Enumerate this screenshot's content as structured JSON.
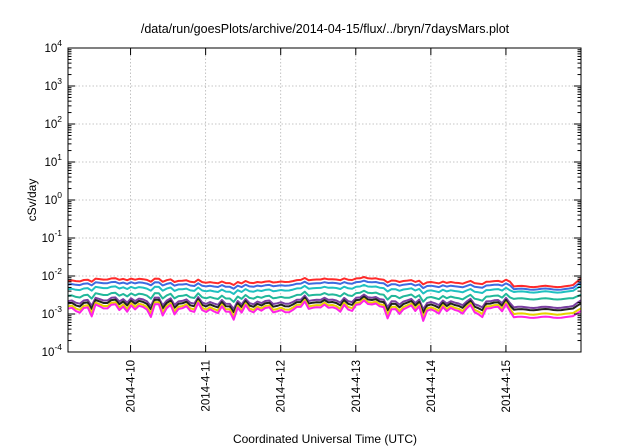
{
  "chart_data": {
    "type": "line",
    "title": "/data/run/goesPlots/archive/2014-04-15/flux/../bryn/7daysMars.plot",
    "xlabel": "Coordinated Universal Time (UTC)",
    "ylabel": "cSv/day",
    "yscale": "log",
    "ylim": [
      0.0001,
      10000
    ],
    "xlim": [
      "2014-04-09 04:00",
      "2014-04-16 00:00"
    ],
    "grid": true,
    "x_ticks": [
      "2014-4-10",
      "2014-4-11",
      "2014-4-12",
      "2014-4-13",
      "2014-4-14",
      "2014-4-15"
    ],
    "y_ticks": [
      {
        "base": "10",
        "exp": "-4"
      },
      {
        "base": "10",
        "exp": "-3"
      },
      {
        "base": "10",
        "exp": "-2"
      },
      {
        "base": "10",
        "exp": "-1"
      },
      {
        "base": "10",
        "exp": "0"
      },
      {
        "base": "10",
        "exp": "1"
      },
      {
        "base": "10",
        "exp": "2"
      },
      {
        "base": "10",
        "exp": "3"
      },
      {
        "base": "10",
        "exp": "4"
      }
    ],
    "series": [
      {
        "color": "#ff2a2a",
        "level": 0.0075,
        "end_level": 0.0053,
        "end_tail": 0.0085,
        "noise": 0.08
      },
      {
        "color": "#3d6be0",
        "level": 0.006,
        "end_level": 0.0045,
        "end_tail": 0.0068,
        "noise": 0.08
      },
      {
        "color": "#1fc0c0",
        "level": 0.0045,
        "end_level": 0.0038,
        "end_tail": 0.0055,
        "noise": 0.1
      },
      {
        "color": "#22b89a",
        "level": 0.003,
        "end_level": 0.0025,
        "end_tail": 0.0032,
        "noise": 0.14
      },
      {
        "color": "#7a3ea0",
        "level": 0.0022,
        "end_level": 0.0015,
        "end_tail": 0.0023,
        "noise": 0.2
      },
      {
        "color": "#222222",
        "level": 0.0019,
        "end_level": 0.0013,
        "end_tail": 0.0019,
        "noise": 0.22
      },
      {
        "color": "#e6d200",
        "level": 0.0016,
        "end_level": 0.001,
        "end_tail": 0.0014,
        "noise": 0.25
      },
      {
        "color": "#ff22e6",
        "level": 0.0014,
        "end_level": 0.00082,
        "end_tail": 0.0012,
        "noise": 0.28
      }
    ]
  }
}
